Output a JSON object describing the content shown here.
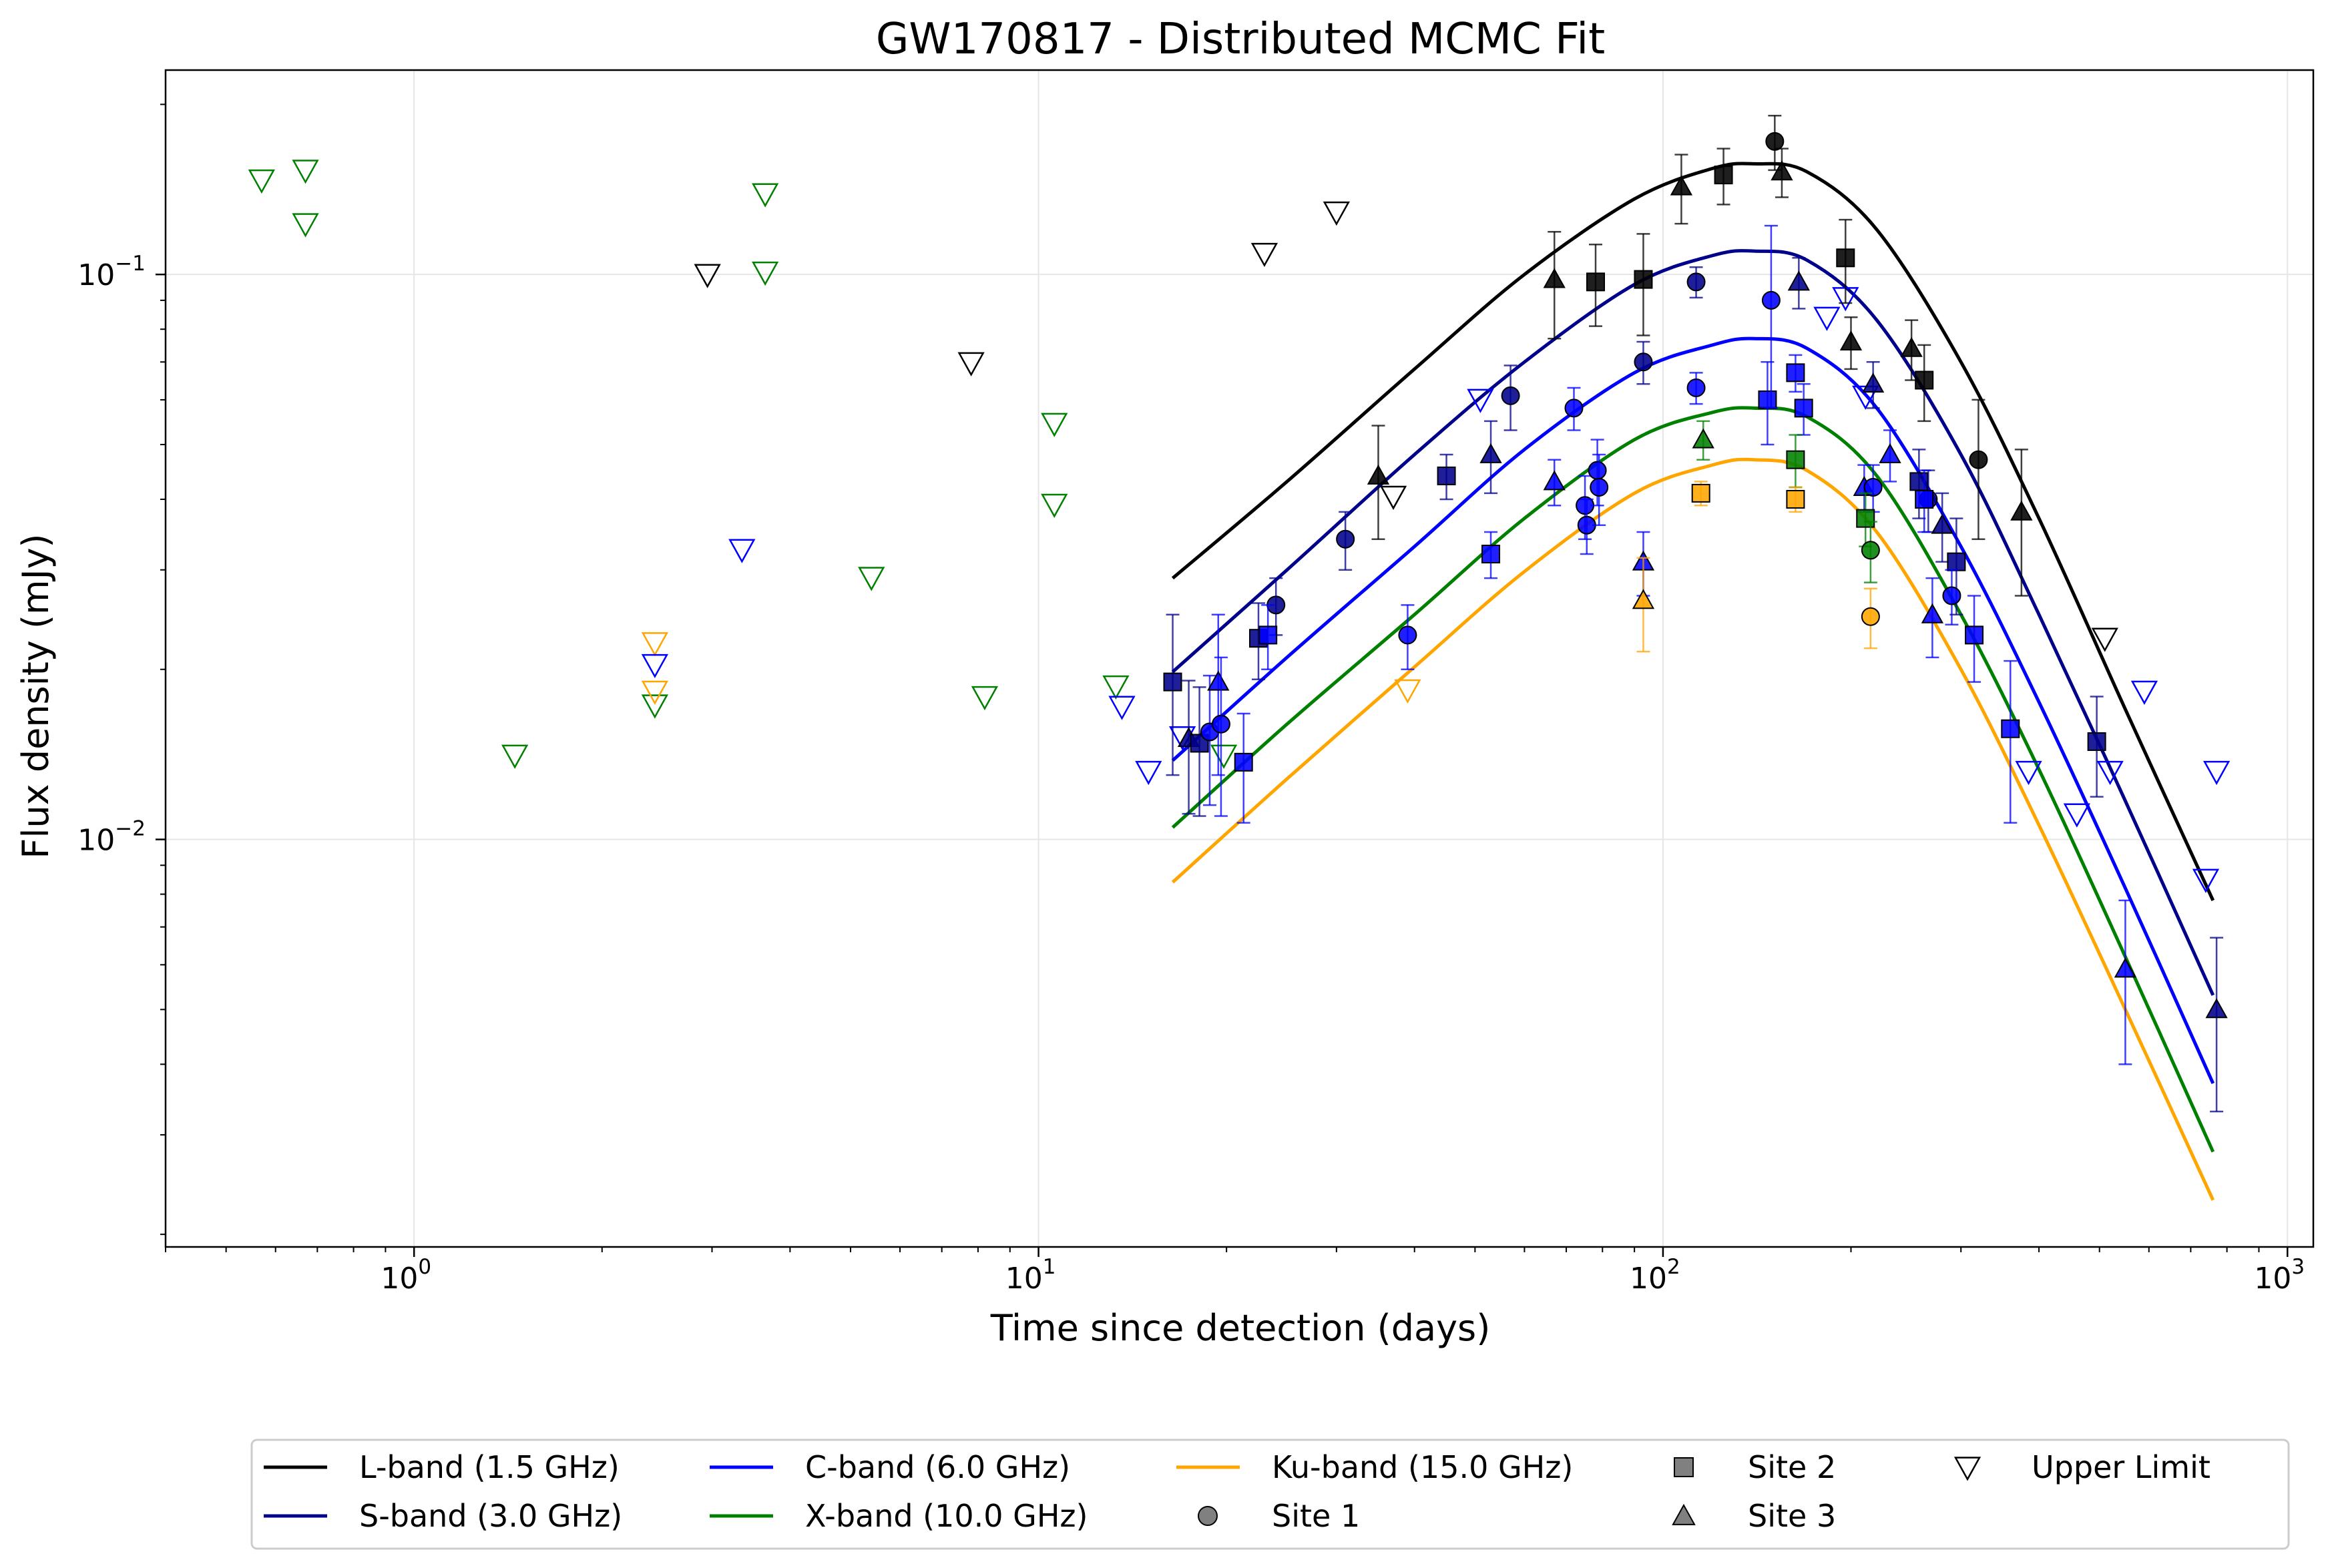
{
  "chart_data": {
    "type": "scatter",
    "title": "GW170817 - Distributed MCMC Fit",
    "xlabel": "Time since detection (days)",
    "ylabel": "Flux density (mJy)",
    "xscale": "log",
    "yscale": "log",
    "xlim": [
      0.4,
      1100
    ],
    "ylim": [
      0.0019,
      0.23
    ],
    "grid": true,
    "legend_position": "below",
    "x_ticks": [
      {
        "base": "10",
        "exp": "0",
        "value": 1
      },
      {
        "base": "10",
        "exp": "1",
        "value": 10
      },
      {
        "base": "10",
        "exp": "2",
        "value": 100
      },
      {
        "base": "10",
        "exp": "3",
        "value": 1000
      }
    ],
    "y_ticks": [
      {
        "base": "10",
        "exp": "−1",
        "value": 0.1
      },
      {
        "base": "10",
        "exp": "−2",
        "value": 0.01
      }
    ],
    "series": [
      {
        "key": "L",
        "name": "L-band (1.5 GHz)",
        "color": "#000000"
      },
      {
        "key": "S",
        "name": "S-band (3.0 GHz)",
        "color": "#00008b"
      },
      {
        "key": "C",
        "name": "C-band (6.0 GHz)",
        "color": "#0000ff"
      },
      {
        "key": "X",
        "name": "X-band (10.0 GHz)",
        "color": "#008000"
      },
      {
        "key": "Ku",
        "name": "Ku-band (15.0 GHz)",
        "color": "#ffa500"
      }
    ],
    "markers": [
      {
        "key": "circle",
        "name": "Site 1"
      },
      {
        "key": "square",
        "name": "Site 2"
      },
      {
        "key": "triangle",
        "name": "Site 3"
      },
      {
        "key": "ul",
        "name": "Upper Limit"
      }
    ],
    "model_curves": [
      {
        "band": "L",
        "x": [
          16.4,
          25,
          40,
          60,
          90,
          120,
          140,
          170,
          220,
          300,
          400,
          550,
          760
        ],
        "y": [
          0.029,
          0.043,
          0.068,
          0.1,
          0.136,
          0.154,
          0.157,
          0.152,
          0.12,
          0.07,
          0.037,
          0.017,
          0.0078
        ]
      },
      {
        "band": "S",
        "x": [
          16.4,
          25,
          40,
          60,
          90,
          120,
          140,
          170,
          220,
          300,
          400,
          550,
          760
        ],
        "y": [
          0.0198,
          0.03,
          0.048,
          0.07,
          0.096,
          0.108,
          0.11,
          0.106,
          0.083,
          0.048,
          0.025,
          0.0117,
          0.0053
        ]
      },
      {
        "band": "C",
        "x": [
          16.4,
          25,
          40,
          60,
          90,
          120,
          140,
          170,
          220,
          300,
          400,
          550,
          760
        ],
        "y": [
          0.0138,
          0.021,
          0.033,
          0.049,
          0.067,
          0.075,
          0.077,
          0.074,
          0.058,
          0.033,
          0.0175,
          0.0082,
          0.0037
        ]
      },
      {
        "band": "X",
        "x": [
          16.4,
          25,
          40,
          60,
          90,
          120,
          140,
          170,
          220,
          300,
          400,
          550,
          760
        ],
        "y": [
          0.0105,
          0.016,
          0.025,
          0.037,
          0.051,
          0.057,
          0.058,
          0.056,
          0.044,
          0.025,
          0.0133,
          0.0062,
          0.0028
        ]
      },
      {
        "band": "Ku",
        "x": [
          16.4,
          25,
          40,
          60,
          90,
          120,
          140,
          170,
          220,
          300,
          400,
          550,
          760
        ],
        "y": [
          0.0084,
          0.0128,
          0.0202,
          0.0298,
          0.041,
          0.046,
          0.047,
          0.045,
          0.035,
          0.02,
          0.0106,
          0.005,
          0.0023
        ]
      }
    ],
    "detections": [
      {
        "band": "L",
        "marker": "triangle",
        "x": 35,
        "y": 0.044,
        "err": 0.01
      },
      {
        "band": "L",
        "marker": "triangle",
        "x": 67,
        "y": 0.098,
        "err": 0.021
      },
      {
        "band": "L",
        "marker": "square",
        "x": 78,
        "y": 0.097,
        "err": 0.016
      },
      {
        "band": "L",
        "marker": "square",
        "x": 93,
        "y": 0.098,
        "err": 0.02
      },
      {
        "band": "L",
        "marker": "triangle",
        "x": 107,
        "y": 0.143,
        "err": 0.02
      },
      {
        "band": "L",
        "marker": "square",
        "x": 125,
        "y": 0.15,
        "err": 0.017
      },
      {
        "band": "L",
        "marker": "circle",
        "x": 151,
        "y": 0.172,
        "err": 0.019
      },
      {
        "band": "L",
        "marker": "triangle",
        "x": 155,
        "y": 0.152,
        "err": 0.015
      },
      {
        "band": "L",
        "marker": "triangle",
        "x": 200,
        "y": 0.076,
        "err": 0.008
      },
      {
        "band": "L",
        "marker": "square",
        "x": 196,
        "y": 0.107,
        "err": 0.018
      },
      {
        "band": "L",
        "marker": "triangle",
        "x": 250,
        "y": 0.074,
        "err": 0.009
      },
      {
        "band": "L",
        "marker": "square",
        "x": 262,
        "y": 0.065,
        "err": 0.01
      },
      {
        "band": "L",
        "marker": "circle",
        "x": 320,
        "y": 0.047,
        "err": 0.013
      },
      {
        "band": "L",
        "marker": "triangle",
        "x": 375,
        "y": 0.038,
        "err": 0.011
      },
      {
        "band": "S",
        "marker": "square",
        "x": 16.4,
        "y": 0.019,
        "err": 0.006
      },
      {
        "band": "S",
        "marker": "triangle",
        "x": 17.4,
        "y": 0.0151,
        "err": 0.004
      },
      {
        "band": "S",
        "marker": "square",
        "x": 18.1,
        "y": 0.0148,
        "err": 0.0038
      },
      {
        "band": "S",
        "marker": "square",
        "x": 22.5,
        "y": 0.0227,
        "err": 0.0035
      },
      {
        "band": "S",
        "marker": "circle",
        "x": 24.0,
        "y": 0.026,
        "err": 0.003
      },
      {
        "band": "S",
        "marker": "circle",
        "x": 31,
        "y": 0.034,
        "err": 0.004
      },
      {
        "band": "S",
        "marker": "square",
        "x": 45,
        "y": 0.044,
        "err": 0.004
      },
      {
        "band": "S",
        "marker": "triangle",
        "x": 53,
        "y": 0.048,
        "err": 0.007
      },
      {
        "band": "S",
        "marker": "circle",
        "x": 57,
        "y": 0.061,
        "err": 0.008
      },
      {
        "band": "S",
        "marker": "circle",
        "x": 93,
        "y": 0.07,
        "err": 0.006
      },
      {
        "band": "S",
        "marker": "circle",
        "x": 113,
        "y": 0.097,
        "err": 0.006
      },
      {
        "band": "S",
        "marker": "triangle",
        "x": 165,
        "y": 0.097,
        "err": 0.01
      },
      {
        "band": "S",
        "marker": "triangle",
        "x": 217,
        "y": 0.064,
        "err": 0.006
      },
      {
        "band": "S",
        "marker": "square",
        "x": 257,
        "y": 0.043,
        "err": 0.006
      },
      {
        "band": "S",
        "marker": "circle",
        "x": 266,
        "y": 0.04,
        "err": 0.005
      },
      {
        "band": "S",
        "marker": "triangle",
        "x": 280,
        "y": 0.036,
        "err": 0.005
      },
      {
        "band": "S",
        "marker": "square",
        "x": 295,
        "y": 0.031,
        "err": 0.006
      },
      {
        "band": "S",
        "marker": "square",
        "x": 495,
        "y": 0.0149,
        "err": 0.003
      },
      {
        "band": "S",
        "marker": "triangle",
        "x": 770,
        "y": 0.005,
        "err": 0.0017
      },
      {
        "band": "C",
        "marker": "circle",
        "x": 18.8,
        "y": 0.0155,
        "err": 0.004
      },
      {
        "band": "C",
        "marker": "triangle",
        "x": 19.4,
        "y": 0.019,
        "err": 0.006
      },
      {
        "band": "C",
        "marker": "circle",
        "x": 19.6,
        "y": 0.016,
        "err": 0.005
      },
      {
        "band": "C",
        "marker": "square",
        "x": 21.3,
        "y": 0.0137,
        "err": 0.003
      },
      {
        "band": "C",
        "marker": "square",
        "x": 23.3,
        "y": 0.023,
        "err": 0.003
      },
      {
        "band": "C",
        "marker": "circle",
        "x": 39,
        "y": 0.023,
        "err": 0.003
      },
      {
        "band": "C",
        "marker": "square",
        "x": 53,
        "y": 0.032,
        "err": 0.003
      },
      {
        "band": "C",
        "marker": "triangle",
        "x": 67,
        "y": 0.043,
        "err": 0.004
      },
      {
        "band": "C",
        "marker": "circle",
        "x": 72,
        "y": 0.058,
        "err": 0.005
      },
      {
        "band": "C",
        "marker": "circle",
        "x": 75,
        "y": 0.039,
        "err": 0.005
      },
      {
        "band": "C",
        "marker": "circle",
        "x": 75.5,
        "y": 0.036,
        "err": 0.004
      },
      {
        "band": "C",
        "marker": "circle",
        "x": 78.5,
        "y": 0.045,
        "err": 0.006
      },
      {
        "band": "C",
        "marker": "circle",
        "x": 79,
        "y": 0.042,
        "err": 0.006
      },
      {
        "band": "C",
        "marker": "triangle",
        "x": 93,
        "y": 0.031,
        "err": 0.004
      },
      {
        "band": "C",
        "marker": "circle",
        "x": 113,
        "y": 0.063,
        "err": 0.004
      },
      {
        "band": "C",
        "marker": "square",
        "x": 147,
        "y": 0.06,
        "err": 0.01
      },
      {
        "band": "C",
        "marker": "circle",
        "x": 149,
        "y": 0.09,
        "err": 0.032
      },
      {
        "band": "C",
        "marker": "square",
        "x": 163,
        "y": 0.067,
        "err": 0.005
      },
      {
        "band": "C",
        "marker": "square",
        "x": 168,
        "y": 0.058,
        "err": 0.006
      },
      {
        "band": "C",
        "marker": "triangle",
        "x": 210,
        "y": 0.042,
        "err": 0.004
      },
      {
        "band": "C",
        "marker": "circle",
        "x": 217,
        "y": 0.042,
        "err": 0.004
      },
      {
        "band": "C",
        "marker": "triangle",
        "x": 231,
        "y": 0.048,
        "err": 0.005
      },
      {
        "band": "C",
        "marker": "square",
        "x": 262,
        "y": 0.04,
        "err": 0.005
      },
      {
        "band": "C",
        "marker": "triangle",
        "x": 270,
        "y": 0.025,
        "err": 0.004
      },
      {
        "band": "C",
        "marker": "circle",
        "x": 290,
        "y": 0.027,
        "err": 0.003
      },
      {
        "band": "C",
        "marker": "square",
        "x": 315,
        "y": 0.023,
        "err": 0.004
      },
      {
        "band": "C",
        "marker": "square",
        "x": 360,
        "y": 0.0157,
        "err": 0.005
      },
      {
        "band": "C",
        "marker": "triangle",
        "x": 550,
        "y": 0.0059,
        "err": 0.0019
      },
      {
        "band": "X",
        "marker": "triangle",
        "x": 116,
        "y": 0.051,
        "err": 0.004
      },
      {
        "band": "X",
        "marker": "square",
        "x": 163,
        "y": 0.047,
        "err": 0.005
      },
      {
        "band": "X",
        "marker": "square",
        "x": 211,
        "y": 0.037,
        "err": 0.004
      },
      {
        "band": "X",
        "marker": "circle",
        "x": 215,
        "y": 0.0325,
        "err": 0.004
      },
      {
        "band": "Ku",
        "marker": "triangle",
        "x": 93,
        "y": 0.0265,
        "err": 0.005
      },
      {
        "band": "Ku",
        "marker": "square",
        "x": 115,
        "y": 0.041,
        "err": 0.002
      },
      {
        "band": "Ku",
        "marker": "square",
        "x": 163,
        "y": 0.04,
        "err": 0.002
      },
      {
        "band": "Ku",
        "marker": "circle",
        "x": 215,
        "y": 0.0248,
        "err": 0.003
      }
    ],
    "upper_limits": [
      {
        "band": "X",
        "x": 0.57,
        "y": 0.147
      },
      {
        "band": "X",
        "x": 0.67,
        "y": 0.153
      },
      {
        "band": "X",
        "x": 0.67,
        "y": 0.123
      },
      {
        "band": "X",
        "x": 1.45,
        "y": 0.0141
      },
      {
        "band": "X",
        "x": 2.43,
        "y": 0.0173
      },
      {
        "band": "X",
        "x": 3.65,
        "y": 0.139
      },
      {
        "band": "X",
        "x": 3.65,
        "y": 0.101
      },
      {
        "band": "X",
        "x": 5.4,
        "y": 0.0291
      },
      {
        "band": "X",
        "x": 8.2,
        "y": 0.0179
      },
      {
        "band": "X",
        "x": 10.6,
        "y": 0.0545
      },
      {
        "band": "X",
        "x": 10.6,
        "y": 0.0392
      },
      {
        "band": "X",
        "x": 13.3,
        "y": 0.0187
      },
      {
        "band": "X",
        "x": 19.8,
        "y": 0.0141
      },
      {
        "band": "Ku",
        "x": 2.43,
        "y": 0.0223
      },
      {
        "band": "Ku",
        "x": 2.43,
        "y": 0.0183
      },
      {
        "band": "Ku",
        "x": 39,
        "y": 0.0184
      },
      {
        "band": "L",
        "x": 2.95,
        "y": 0.1
      },
      {
        "band": "L",
        "x": 7.8,
        "y": 0.0698
      },
      {
        "band": "L",
        "x": 23.0,
        "y": 0.109
      },
      {
        "band": "L",
        "x": 30.0,
        "y": 0.129
      },
      {
        "band": "L",
        "x": 37.0,
        "y": 0.0405
      },
      {
        "band": "L",
        "x": 510,
        "y": 0.0227
      },
      {
        "band": "C",
        "x": 2.43,
        "y": 0.0204
      },
      {
        "band": "C",
        "x": 3.35,
        "y": 0.0326
      },
      {
        "band": "C",
        "x": 13.6,
        "y": 0.0172
      },
      {
        "band": "C",
        "x": 15.0,
        "y": 0.0132
      },
      {
        "band": "C",
        "x": 17.0,
        "y": 0.0152
      },
      {
        "band": "C",
        "x": 51,
        "y": 0.0601
      },
      {
        "band": "C",
        "x": 183,
        "y": 0.084
      },
      {
        "band": "C",
        "x": 196,
        "y": 0.091
      },
      {
        "band": "C",
        "x": 211,
        "y": 0.0609
      },
      {
        "band": "C",
        "x": 385,
        "y": 0.0132
      },
      {
        "band": "C",
        "x": 460,
        "y": 0.0111
      },
      {
        "band": "C",
        "x": 520,
        "y": 0.0132
      },
      {
        "band": "C",
        "x": 590,
        "y": 0.0183
      },
      {
        "band": "C",
        "x": 740,
        "y": 0.0085
      },
      {
        "band": "C",
        "x": 770,
        "y": 0.0132
      }
    ]
  }
}
